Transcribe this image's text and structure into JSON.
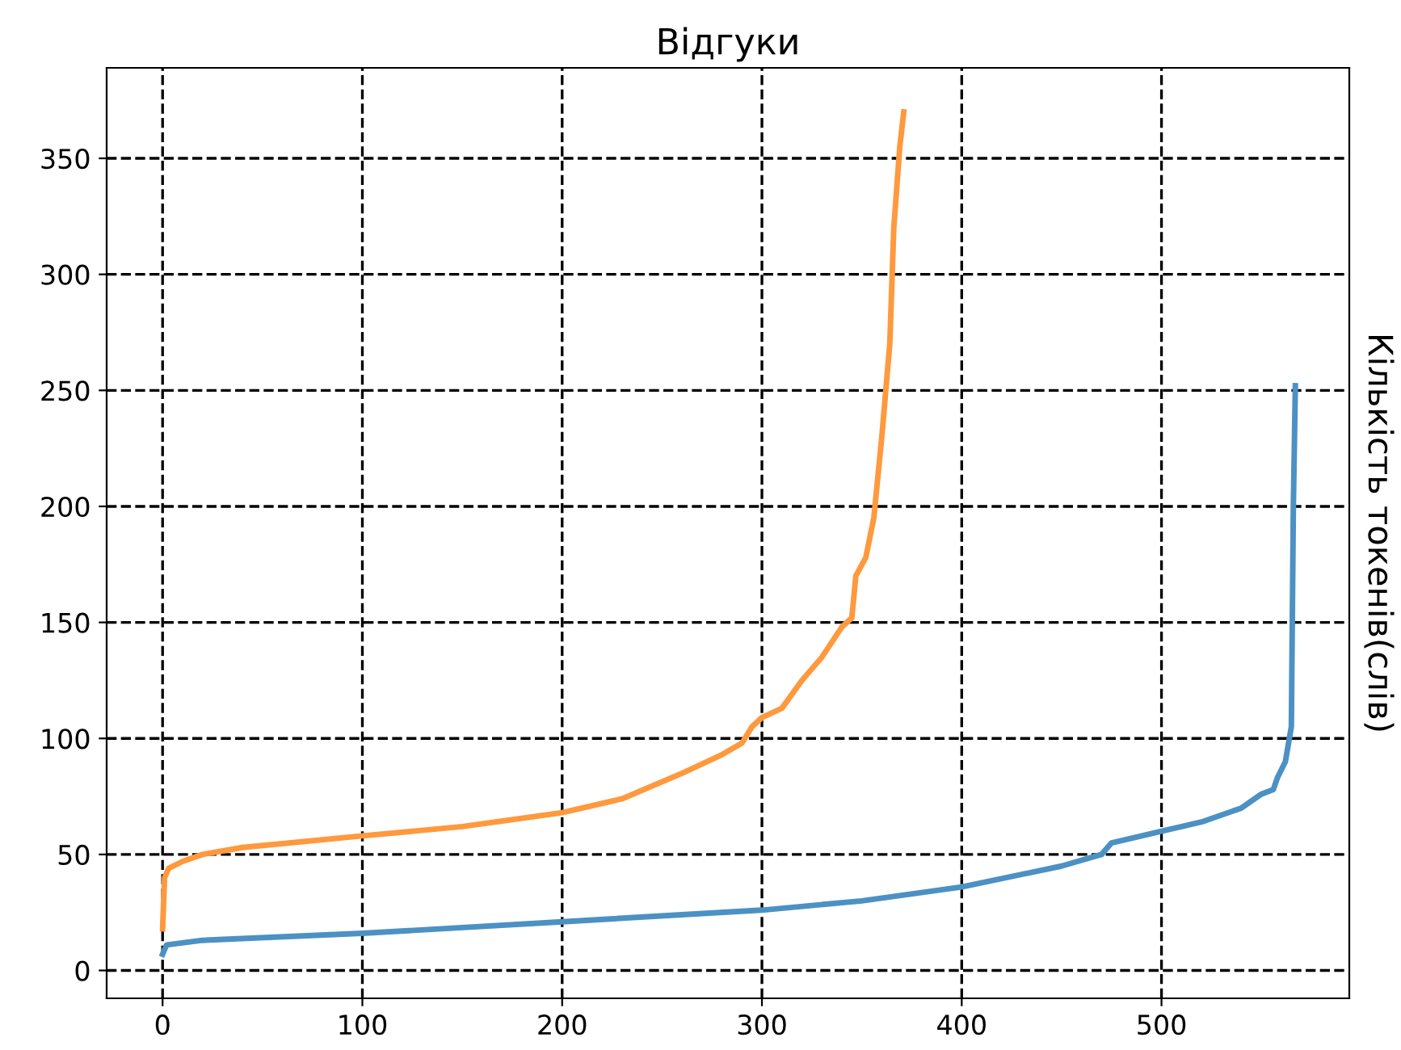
{
  "chart_data": {
    "type": "line",
    "title": "Відгуки",
    "ylabel": "Кількість токенів(слів)",
    "xlim": [
      -28,
      594
    ],
    "ylim": [
      -12,
      389
    ],
    "xticks": [
      0,
      100,
      200,
      300,
      400,
      500
    ],
    "yticks": [
      0,
      50,
      100,
      150,
      200,
      250,
      300,
      350
    ],
    "grid": true,
    "line_style": "solid",
    "series": [
      {
        "color": "#4c91c4",
        "x": [
          0,
          2,
          20,
          100,
          200,
          300,
          350,
          400,
          450,
          470,
          475,
          500,
          520,
          540,
          550,
          556,
          558,
          562,
          565,
          566,
          567
        ],
        "values": [
          7,
          11,
          13,
          16,
          21,
          26,
          30,
          36,
          45,
          50,
          55,
          60,
          64,
          70,
          76,
          78,
          83,
          90,
          105,
          200,
          252
        ]
      },
      {
        "color": "#ff993d",
        "x": [
          0,
          1,
          3,
          10,
          20,
          40,
          100,
          150,
          200,
          230,
          260,
          280,
          290,
          295,
          300,
          310,
          320,
          330,
          340,
          345,
          347,
          352,
          356,
          360,
          364,
          366,
          369,
          371
        ],
        "values": [
          18,
          40,
          44,
          47,
          50,
          53,
          58,
          62,
          68,
          74,
          85,
          93,
          98,
          105,
          109,
          113,
          125,
          135,
          148,
          152,
          170,
          178,
          195,
          230,
          270,
          320,
          355,
          370
        ]
      }
    ]
  }
}
